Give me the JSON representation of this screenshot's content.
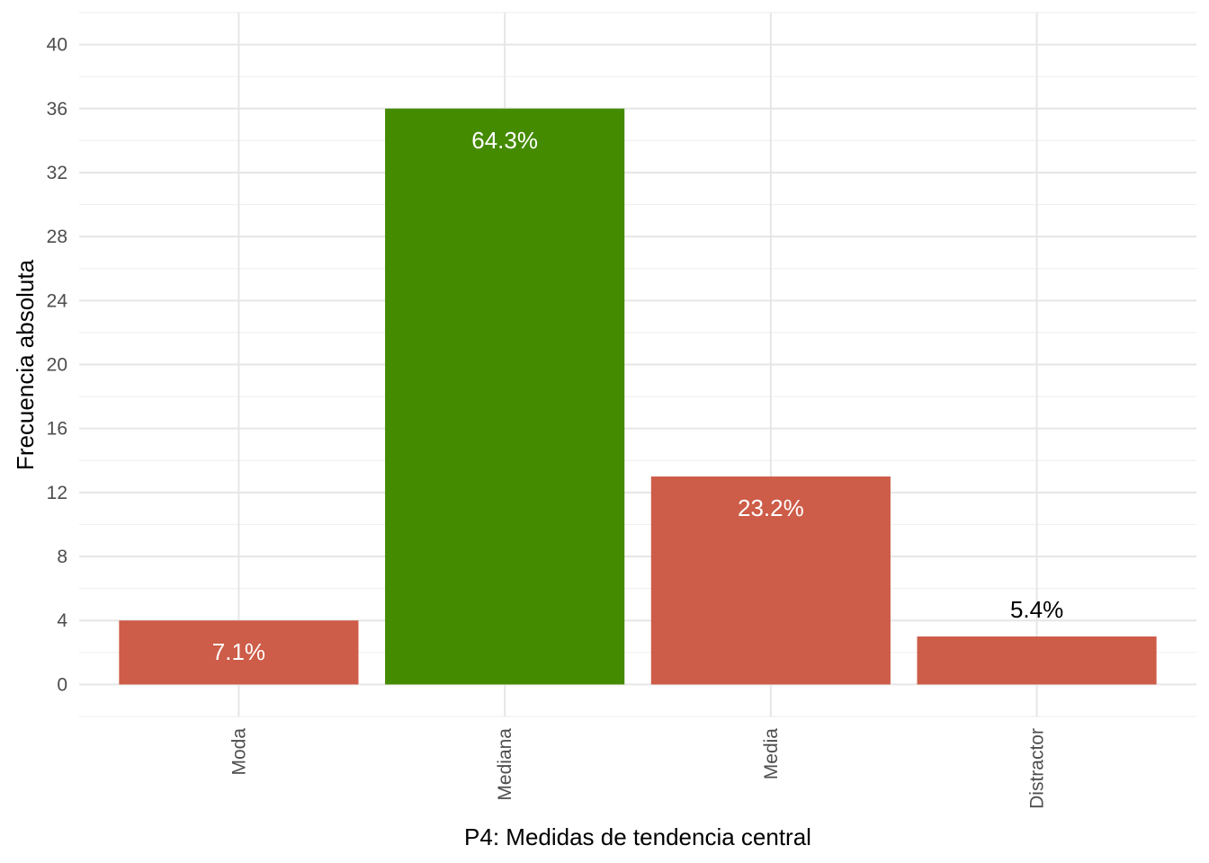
{
  "chart_data": {
    "type": "bar",
    "categories": [
      "Moda",
      "Mediana",
      "Media",
      "Distractor"
    ],
    "values": [
      4,
      36,
      13,
      3
    ],
    "data_labels": [
      "7.1%",
      "64.3%",
      "23.2%",
      "5.4%"
    ],
    "bar_colors": [
      "#cd5c48",
      "#458b00",
      "#cd5c48",
      "#cd5c48"
    ],
    "label_colors": [
      "#ffffff",
      "#ffffff",
      "#ffffff",
      "#000000"
    ],
    "label_inside": [
      true,
      true,
      true,
      false
    ],
    "xlabel": "P4: Medidas de tendencia central",
    "ylabel": "Frecuencia absoluta",
    "yticks": [
      0,
      4,
      8,
      12,
      16,
      20,
      24,
      28,
      32,
      36,
      40
    ],
    "ylim": [
      -2,
      42
    ],
    "grid": true,
    "x_tick_rotation": "vertical"
  }
}
